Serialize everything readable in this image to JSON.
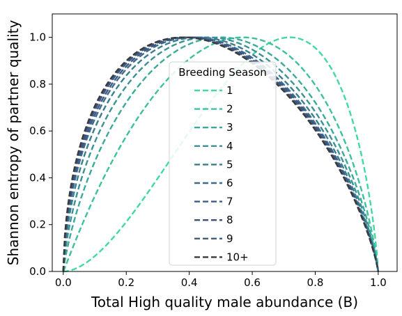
{
  "chart_data": {
    "type": "line",
    "title": "",
    "xlabel": "Total High quality male abundance (B)",
    "ylabel": "Shannon entropy of partner quality",
    "xlim": [
      -0.035,
      1.06
    ],
    "ylim": [
      0,
      1.1
    ],
    "xticks": [
      "0.0",
      "0.2",
      "0.4",
      "0.6",
      "0.8",
      "1.0"
    ],
    "xtick_values": [
      0.0,
      0.2,
      0.4,
      0.6,
      0.8,
      1.0
    ],
    "yticks": [
      "0.0",
      "0.2",
      "0.4",
      "0.6",
      "0.8",
      "1.0"
    ],
    "ytick_values": [
      0.0,
      0.2,
      0.4,
      0.6,
      0.8,
      1.0
    ],
    "grid": false,
    "legend": {
      "title": "Breeding Season",
      "placement": "center"
    },
    "line_style": "dashed",
    "series": [
      {
        "name": "1",
        "color": "#40d9a3",
        "peak": 0.72
      },
      {
        "name": "2",
        "color": "#3cc19e",
        "peak": 0.57
      },
      {
        "name": "3",
        "color": "#3ba99a",
        "peak": 0.5
      },
      {
        "name": "4",
        "color": "#3a9295",
        "peak": 0.46
      },
      {
        "name": "5",
        "color": "#3b7d90",
        "peak": 0.43
      },
      {
        "name": "6",
        "color": "#3e6a8c",
        "peak": 0.41
      },
      {
        "name": "7",
        "color": "#3f5a86",
        "peak": 0.4
      },
      {
        "name": "8",
        "color": "#3b4f7e",
        "peak": 0.39
      },
      {
        "name": "9",
        "color": "#3f5e7d",
        "peak": 0.385
      },
      {
        "name": "10+",
        "color": "#3a3a3a",
        "peak": 0.38
      }
    ]
  }
}
